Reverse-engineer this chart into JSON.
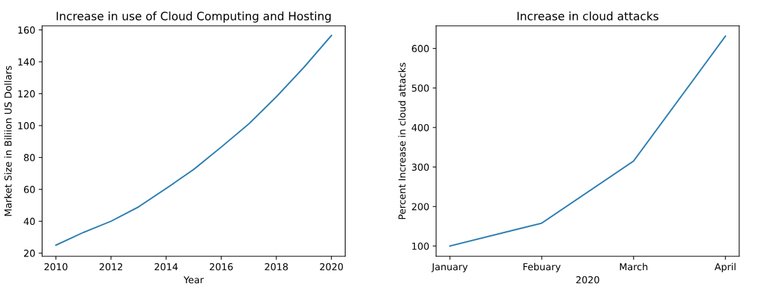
{
  "chart_data": [
    {
      "type": "line",
      "title": "Increase in use of Cloud Computing and Hosting",
      "xlabel": "Year",
      "ylabel": "Market Size in Biliion US Dollars",
      "x": [
        2010,
        2011,
        2012,
        2013,
        2014,
        2015,
        2016,
        2017,
        2018,
        2019,
        2020
      ],
      "series": [
        {
          "color": "#2e7fb3",
          "values": [
            25,
            33,
            40,
            49,
            60.5,
            72.5,
            86.5,
            101,
            118,
            136.5,
            156.5
          ]
        }
      ],
      "xlim": [
        2009.5,
        2020.5
      ],
      "xticks": [
        2010,
        2012,
        2014,
        2016,
        2018,
        2020
      ],
      "ylim": [
        18,
        162.5
      ],
      "yticks": [
        20,
        40,
        60,
        80,
        100,
        120,
        140,
        160
      ],
      "grid": false
    },
    {
      "type": "line",
      "title": "Increase in cloud attacks",
      "xlabel": "2020",
      "ylabel": "Percent Increase in cloud attacks",
      "categories": [
        "January",
        "Febuary",
        "March",
        "April"
      ],
      "series": [
        {
          "color": "#2e7fb3",
          "values": [
            100,
            158,
            315,
            631
          ]
        }
      ],
      "ylim": [
        74,
        657
      ],
      "yticks": [
        100,
        200,
        300,
        400,
        500,
        600
      ],
      "grid": false
    }
  ]
}
